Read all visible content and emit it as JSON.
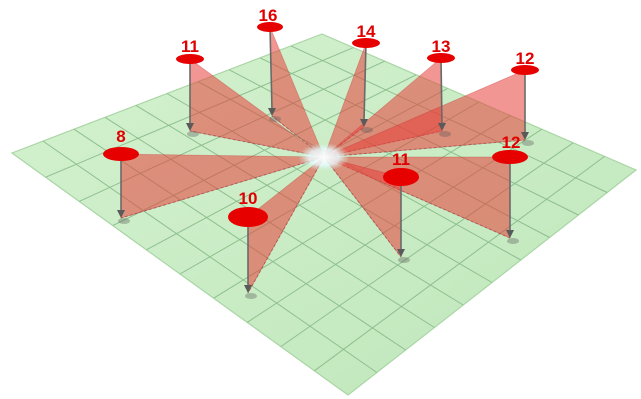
{
  "diagram": {
    "pins": [
      {
        "label": "16"
      },
      {
        "label": "14"
      },
      {
        "label": "13"
      },
      {
        "label": "12"
      },
      {
        "label": "12"
      },
      {
        "label": "11"
      },
      {
        "label": "10"
      },
      {
        "label": "8"
      },
      {
        "label": "11"
      }
    ],
    "colors": {
      "plane": "#c8ecc4",
      "plane_edge": "#a9d6a4",
      "grid": "#8fbf8f",
      "vane": "#e8403a",
      "pin_head": "#e60000",
      "label": "#e00000",
      "stem": "#6a6a6a",
      "center_glow": "#ffffff"
    }
  }
}
